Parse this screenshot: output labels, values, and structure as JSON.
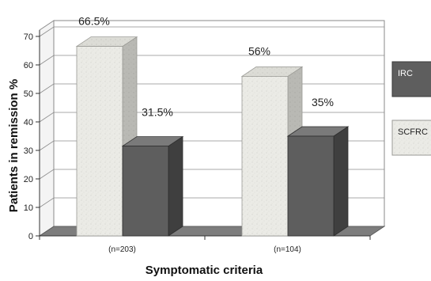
{
  "chart_data": {
    "type": "bar",
    "style": "3d",
    "categories": [
      "(n=203)",
      "(n=104)"
    ],
    "series": [
      {
        "name": "SCFRC",
        "values": [
          66.5,
          56
        ],
        "value_labels": [
          "66.5%",
          "56%"
        ],
        "color": "#ebebe6"
      },
      {
        "name": "IRC",
        "values": [
          31.5,
          35
        ],
        "value_labels": [
          "31.5%",
          "35%"
        ],
        "color": "#5e5e5e"
      }
    ],
    "xlabel": "Symptomatic criteria",
    "ylabel": "Patients in remission %",
    "ylim": [
      0,
      70
    ],
    "yticks": [
      "0",
      "10",
      "20",
      "30",
      "40",
      "50",
      "60",
      "70"
    ],
    "grid": true,
    "legend": {
      "position": "right",
      "entries": [
        {
          "label": "IRC",
          "color": "#5e5e5e"
        },
        {
          "label": "SCFRC",
          "color": "#ebebe6"
        }
      ]
    }
  }
}
